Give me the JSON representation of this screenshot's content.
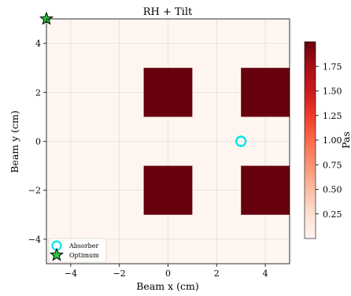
{
  "chart_data": {
    "type": "heatmap",
    "title": "RH + Tilt",
    "xlabel": "Beam x (cm)",
    "ylabel": "Beam y (cm)",
    "xlim": [
      -5,
      5
    ],
    "ylim": [
      -5,
      5
    ],
    "xticks": [
      -4,
      -2,
      0,
      2,
      4
    ],
    "yticks": [
      -4,
      -2,
      0,
      2,
      4
    ],
    "xtick_labels": [
      "−4",
      "−2",
      "0",
      "2",
      "4"
    ],
    "ytick_labels": [
      "−4",
      "−2",
      "0",
      "2",
      "4"
    ],
    "grid": true,
    "background_value": 0.0,
    "regions": [
      {
        "x": [
          -1,
          1
        ],
        "y": [
          1,
          3
        ],
        "value": 2.0
      },
      {
        "x": [
          3,
          5
        ],
        "y": [
          1,
          3
        ],
        "value": 2.0
      },
      {
        "x": [
          -1,
          1
        ],
        "y": [
          -3,
          -1
        ],
        "value": 2.0
      },
      {
        "x": [
          3,
          5
        ],
        "y": [
          -3,
          -1
        ],
        "value": 2.0
      }
    ],
    "markers": [
      {
        "label": "Absorber",
        "x": 3.0,
        "y": 0.0,
        "shape": "circle",
        "color": "#00e5ee"
      },
      {
        "label": "Optimum",
        "x": -5.0,
        "y": 5.0,
        "shape": "star",
        "color": "#2ecc40"
      }
    ],
    "colorbar": {
      "label": "Pas",
      "range": [
        0,
        2.0
      ],
      "ticks": [
        0.25,
        0.5,
        0.75,
        1.0,
        1.25,
        1.5,
        1.75
      ],
      "tick_labels": [
        "0.25",
        "0.50",
        "0.75",
        "1.00",
        "1.25",
        "1.50",
        "1.75"
      ],
      "colormap": "Reds"
    },
    "legend": {
      "location": "lower-left",
      "entries": [
        "Absorber",
        "Optimum"
      ]
    }
  }
}
